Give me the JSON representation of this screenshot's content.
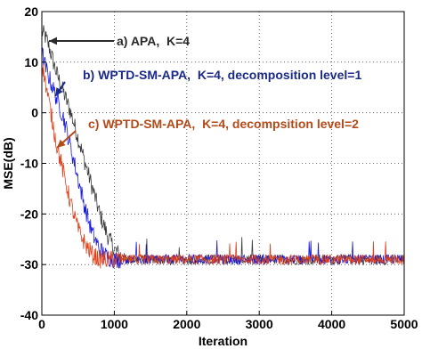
{
  "chart_data": {
    "type": "line",
    "title": "",
    "xlabel": "Iteration",
    "ylabel": "MSE(dB)",
    "xlim": [
      0,
      5000
    ],
    "ylim": [
      -40,
      20
    ],
    "xticks": [
      "0",
      "1000",
      "2000",
      "3000",
      "4000",
      "5000"
    ],
    "yticks": [
      "20",
      "10",
      "0",
      "-10",
      "-20",
      "-30",
      "-40"
    ],
    "grid": true,
    "colors": {
      "apa": "#3a3a3a",
      "level1": "#1a1adc",
      "level2": "#e0401a",
      "annot_a": "#2a2a2a",
      "annot_b": "#1a2a8a",
      "annot_c": "#b34a1a"
    },
    "series": [
      {
        "name": "a) APA,  K=4",
        "x": [
          0,
          50,
          100,
          200,
          300,
          400,
          500,
          600,
          700,
          800,
          900,
          1000,
          1100,
          1200,
          1300,
          1500,
          2000,
          3000,
          4000,
          5000
        ],
        "values": [
          16,
          15,
          13,
          8,
          4,
          0,
          -5,
          -10,
          -15,
          -20,
          -24,
          -27,
          -28.5,
          -29,
          -29,
          -29,
          -29,
          -29,
          -29,
          -29
        ]
      },
      {
        "name": "b) WPTD-SM-APA,  K=4, decomposition level=1",
        "x": [
          0,
          50,
          100,
          150,
          200,
          300,
          400,
          500,
          600,
          700,
          800,
          900,
          1000,
          1100,
          1200,
          2000,
          3000,
          4000,
          5000
        ],
        "values": [
          12,
          9,
          7,
          5,
          3,
          -1,
          -7,
          -13,
          -19,
          -24,
          -27,
          -28.5,
          -29,
          -29,
          -29,
          -29,
          -29,
          -29,
          -29
        ]
      },
      {
        "name": "c) WPTD-SM-APA,  K=4, decompsition level=2",
        "x": [
          0,
          50,
          100,
          150,
          200,
          300,
          400,
          500,
          600,
          700,
          800,
          900,
          1000,
          2000,
          3000,
          4000,
          5000
        ],
        "values": [
          10,
          6,
          2,
          -2,
          -6,
          -12,
          -18,
          -23,
          -26,
          -28,
          -29,
          -29,
          -29,
          -29,
          -29,
          -29,
          -29
        ]
      }
    ],
    "annotations": [
      {
        "text": "a) APA,  K=4"
      },
      {
        "text": "b) WPTD-SM-APA,  K=4, decomposition level=1"
      },
      {
        "text": "c) WPTD-SM-APA,  K=4, decompsition level=2"
      }
    ]
  }
}
